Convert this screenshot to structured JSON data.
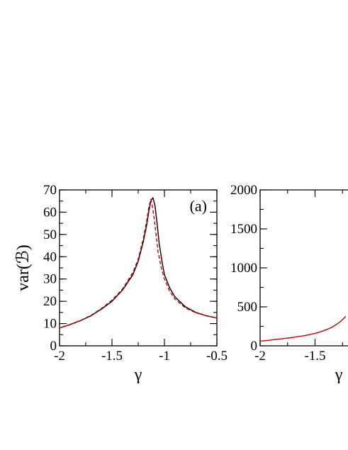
{
  "chart_data": [
    {
      "type": "line",
      "panel_label": "(a)",
      "xlabel": "γ",
      "ylabel": "var(ℬ)",
      "xlim": [
        -2,
        -0.5
      ],
      "ylim": [
        0,
        70
      ],
      "x_ticks": [
        -2,
        -1.5,
        -1,
        -0.5
      ],
      "x_tick_labels": [
        "-2",
        "-1.5",
        "-1",
        "-0.5"
      ],
      "y_ticks": [
        0,
        10,
        20,
        30,
        40,
        50,
        60,
        70
      ],
      "y_tick_labels": [
        "0",
        "10",
        "20",
        "30",
        "40",
        "50",
        "60",
        "70"
      ],
      "series": [
        {
          "style": "solid",
          "color": "#000000",
          "x": [
            -2.0,
            -1.9,
            -1.8,
            -1.7,
            -1.6,
            -1.5,
            -1.4,
            -1.3,
            -1.25,
            -1.2,
            -1.17,
            -1.15,
            -1.13,
            -1.11,
            -1.09,
            -1.07,
            -1.05,
            -1.02,
            -1.0,
            -0.95,
            -0.9,
            -0.8,
            -0.7,
            -0.6,
            -0.5
          ],
          "y": [
            8,
            9.5,
            11.3,
            13.5,
            16.5,
            20,
            25,
            32,
            38,
            47,
            54,
            60,
            65,
            66.5,
            63,
            55,
            46,
            37,
            32,
            26,
            22,
            17.5,
            15,
            13.5,
            12.5
          ]
        },
        {
          "style": "dashed",
          "color": "#cc0000",
          "x": [
            -2.0,
            -1.9,
            -1.8,
            -1.7,
            -1.6,
            -1.5,
            -1.4,
            -1.3,
            -1.25,
            -1.2,
            -1.17,
            -1.15,
            -1.13,
            -1.12,
            -1.1,
            -1.08,
            -1.06,
            -1.03,
            -1.0,
            -0.95,
            -0.9,
            -0.8,
            -0.7,
            -0.6,
            -0.5
          ],
          "y": [
            8,
            9.6,
            11.4,
            13.7,
            16.8,
            20.5,
            25.5,
            33,
            39,
            48.5,
            56,
            62,
            65.8,
            64,
            58,
            50,
            42,
            35,
            30,
            24.5,
            21,
            17,
            14.8,
            13.5,
            12.5
          ]
        }
      ]
    },
    {
      "type": "line",
      "xlabel": "γ",
      "xlim": [
        -2,
        -1.2
      ],
      "ylim": [
        0,
        2000
      ],
      "x_ticks": [
        -2,
        -1.5
      ],
      "x_tick_labels": [
        "-2",
        "-1.5"
      ],
      "y_ticks": [
        0,
        500,
        1000,
        1500,
        2000
      ],
      "y_tick_labels": [
        "0",
        "500",
        "1000",
        "1500",
        "2000"
      ],
      "series": [
        {
          "style": "solid",
          "color": "#cc0000",
          "x": [
            -2.0,
            -1.9,
            -1.8,
            -1.7,
            -1.6,
            -1.5,
            -1.45,
            -1.4,
            -1.35,
            -1.3,
            -1.27,
            -1.24,
            -1.22
          ],
          "y": [
            60,
            75,
            90,
            108,
            130,
            160,
            180,
            205,
            235,
            280,
            310,
            350,
            380
          ]
        }
      ]
    }
  ]
}
